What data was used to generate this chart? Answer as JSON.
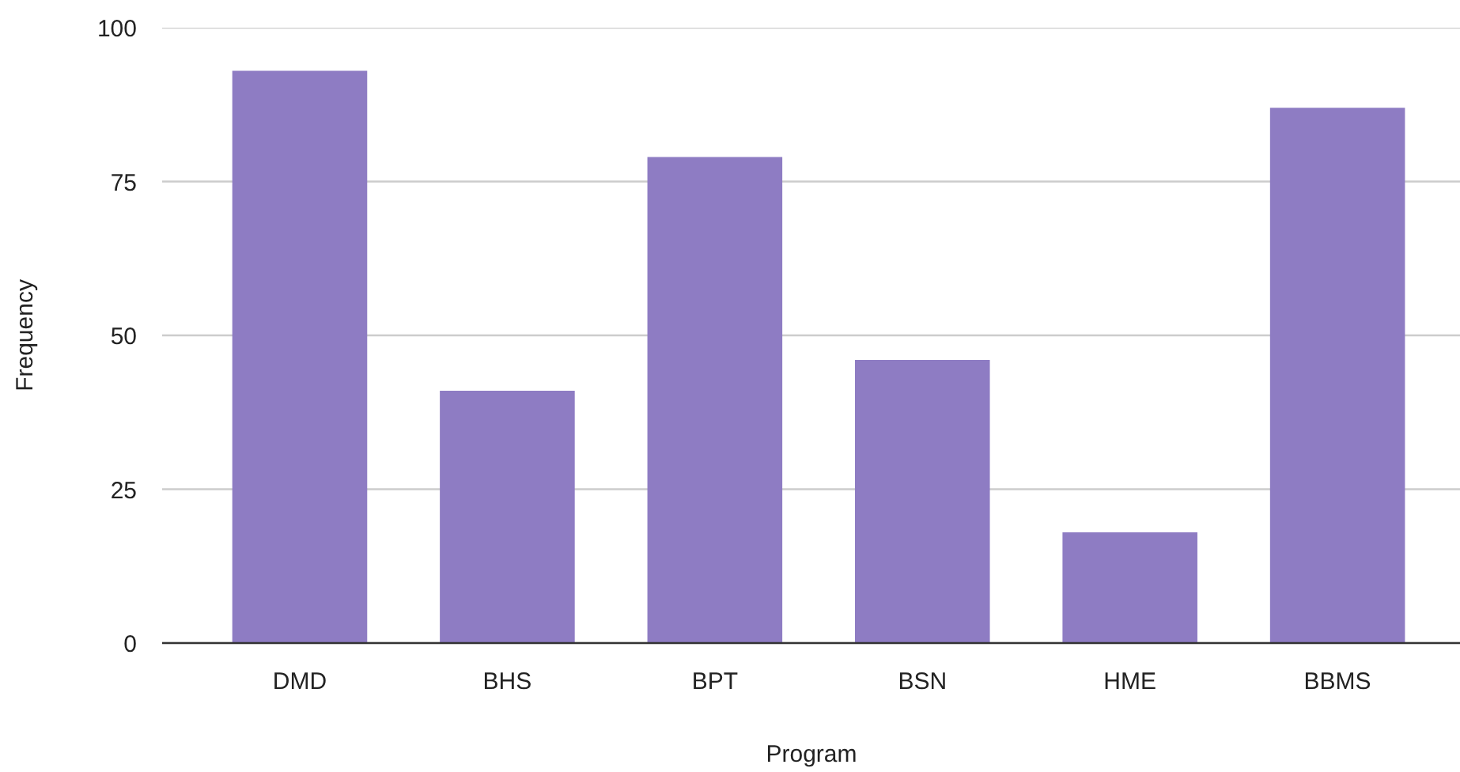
{
  "chart_data": {
    "type": "bar",
    "xlabel": "Program",
    "ylabel": "Frequency",
    "categories": [
      "DMD",
      "BHS",
      "BPT",
      "BSN",
      "HME",
      "BBMS"
    ],
    "values": [
      93,
      41,
      79,
      46,
      18,
      87
    ],
    "color": "#8e7cc3",
    "ylim": [
      0,
      100
    ],
    "yticks": [
      0,
      25,
      50,
      75,
      100
    ],
    "grid": "y"
  }
}
